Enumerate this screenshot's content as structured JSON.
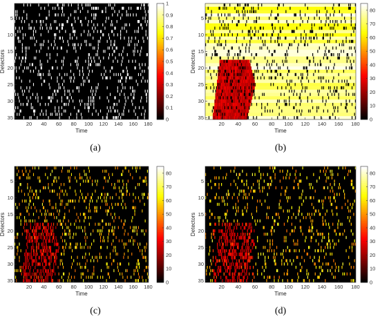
{
  "chart_data": [
    {
      "type": "heatmap",
      "caption": "(a)",
      "xlabel": "Time",
      "ylabel": "Detectors",
      "xlim": [
        1,
        180
      ],
      "ylim": [
        1,
        35
      ],
      "x_ticks": [
        20,
        40,
        60,
        80,
        100,
        120,
        140,
        160,
        180
      ],
      "y_ticks": [
        5,
        10,
        15,
        20,
        25,
        30,
        35
      ],
      "colorbar": {
        "min": 0,
        "max": 1,
        "ticks": [
          0,
          0.1,
          0.2,
          0.3,
          0.4,
          0.5,
          0.6,
          0.7,
          0.8,
          0.9,
          1
        ]
      },
      "colormap": "hot",
      "background_value": 0,
      "marker_value": 1,
      "marker_density": 0.12
    },
    {
      "type": "heatmap",
      "caption": "(b)",
      "xlabel": "Time",
      "ylabel": "Detectors",
      "xlim": [
        1,
        180
      ],
      "ylim": [
        1,
        35
      ],
      "x_ticks": [
        20,
        40,
        60,
        80,
        100,
        120,
        140,
        160,
        180
      ],
      "y_ticks": [
        5,
        10,
        15,
        20,
        25,
        30,
        35
      ],
      "colorbar": {
        "min": 0,
        "max": 85,
        "ticks": [
          0,
          10,
          20,
          30,
          40,
          50,
          60,
          70,
          80
        ]
      },
      "colormap": "hot",
      "background_value": 70,
      "marker_value": 0,
      "marker_density": 0.12,
      "congestion": {
        "detector_start": 18,
        "detector_end": 35,
        "time_start": 18,
        "time_end": 60,
        "value": 25
      }
    },
    {
      "type": "heatmap",
      "caption": "(c)",
      "xlabel": "Time",
      "ylabel": "Detectors",
      "xlim": [
        1,
        180
      ],
      "ylim": [
        1,
        35
      ],
      "x_ticks": [
        20,
        40,
        60,
        80,
        100,
        120,
        140,
        160,
        180
      ],
      "y_ticks": [
        5,
        10,
        15,
        20,
        25,
        30,
        35
      ],
      "colorbar": {
        "min": 0,
        "max": 85,
        "ticks": [
          0,
          10,
          20,
          30,
          40,
          50,
          60,
          70,
          80
        ]
      },
      "colormap": "hot",
      "background_value": 0,
      "marker_value": 70,
      "marker_density": 0.12,
      "congestion": {
        "detector_start": 18,
        "detector_end": 35,
        "time_start": 18,
        "time_end": 60,
        "value": 25
      }
    },
    {
      "type": "heatmap",
      "caption": "(d)",
      "xlabel": "Time",
      "ylabel": "Detectors",
      "xlim": [
        1,
        180
      ],
      "ylim": [
        1,
        35
      ],
      "x_ticks": [
        20,
        40,
        60,
        80,
        100,
        120,
        140,
        160,
        180
      ],
      "y_ticks": [
        5,
        10,
        15,
        20,
        25,
        30,
        35
      ],
      "colorbar": {
        "min": 0,
        "max": 85,
        "ticks": [
          0,
          10,
          20,
          30,
          40,
          50,
          60,
          70,
          80
        ]
      },
      "colormap": "hot",
      "background_value": 0,
      "marker_value": 70,
      "marker_density": 0.12,
      "congestion": {
        "detector_start": 18,
        "detector_end": 35,
        "time_start": 18,
        "time_end": 60,
        "value": 25
      }
    }
  ]
}
